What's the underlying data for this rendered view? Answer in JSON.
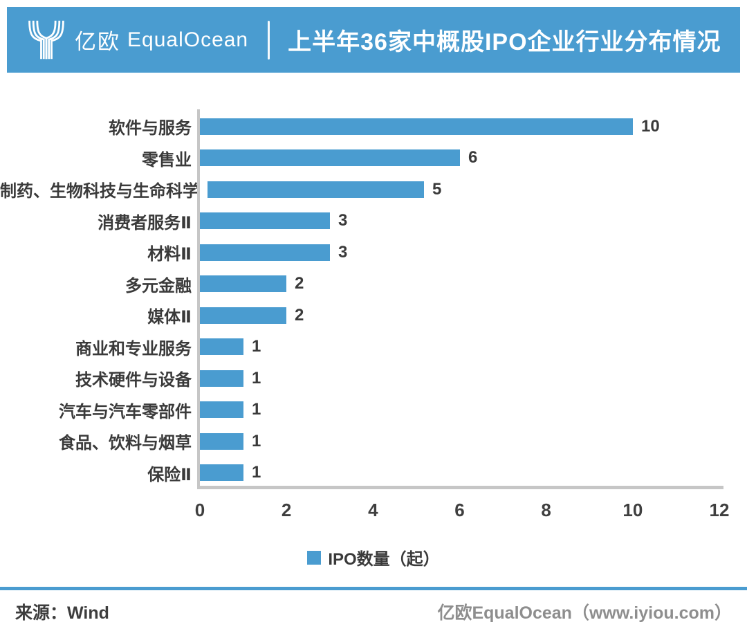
{
  "colors": {
    "accent_blue": "#4a9cd0",
    "axis_gray": "#c6c6c6",
    "label_ink": "#3a3a3a",
    "credit_gray": "#8e8e8e"
  },
  "header": {
    "brand_cn": "亿欧",
    "brand_en": "EqualOcean",
    "title": "上半年36家中概股IPO企业行业分布情况"
  },
  "chart_data": {
    "type": "bar",
    "orientation": "horizontal",
    "title": "上半年36家中概股IPO企业行业分布情况",
    "categories": [
      "软件与服务",
      "零售业",
      "制药、生物科技与生命科学",
      "消费者服务Ⅱ",
      "材料Ⅱ",
      "多元金融",
      "媒体Ⅱ",
      "商业和专业服务",
      "技术硬件与设备",
      "汽车与汽车零部件",
      "食品、饮料与烟草",
      "保险Ⅱ"
    ],
    "values": [
      10,
      6,
      5,
      3,
      3,
      2,
      2,
      1,
      1,
      1,
      1,
      1
    ],
    "series_name": "IPO数量（起）",
    "x_ticks": [
      "0",
      "2",
      "4",
      "6",
      "8",
      "10",
      "12"
    ],
    "xlim": [
      0,
      12
    ],
    "grid": false,
    "legend_position": "bottom",
    "bar_color": "#4a9cd0",
    "value_labels_shown": true
  },
  "legend": {
    "label": "IPO数量（起）",
    "swatch_color": "#4a9cd0"
  },
  "footer": {
    "source": "来源：Wind",
    "credit": "亿欧EqualOcean（www.iyiou.com）"
  }
}
